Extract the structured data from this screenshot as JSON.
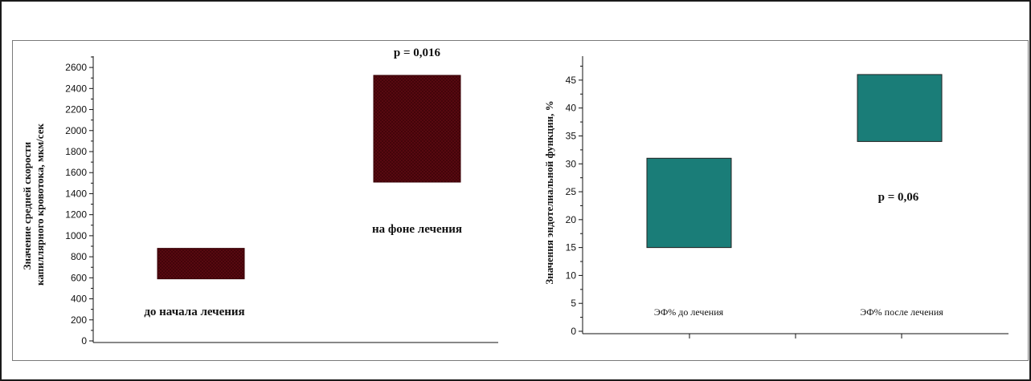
{
  "chart_data": [
    {
      "type": "bar",
      "variant": "floating-range",
      "categories": [
        "до начала лечения",
        "на фоне лечения"
      ],
      "series": [
        {
          "values": [
            [
              590,
              880
            ],
            [
              1510,
              2525
            ]
          ],
          "color": "#5c0a12",
          "pattern": "crosshatch"
        }
      ],
      "ylabel": "Значение средней скорости капиллярного кровотока, мкм/сек",
      "ylim": [
        0,
        2700
      ],
      "yticks": [
        0,
        200,
        400,
        600,
        800,
        1000,
        1200,
        1400,
        1600,
        1800,
        2000,
        2200,
        2400,
        2600
      ],
      "annotations": [
        "p = 0,016"
      ],
      "grid": false
    },
    {
      "type": "bar",
      "variant": "floating-range",
      "categories": [
        "ЭФ% до лечения",
        "ЭФ% после лечения"
      ],
      "series": [
        {
          "values": [
            [
              15,
              31
            ],
            [
              34,
              46
            ]
          ],
          "color": "#1a7d78"
        }
      ],
      "ylabel": "Значения эндотелиальной функции, %",
      "ylim": [
        0,
        48
      ],
      "yticks": [
        0,
        5,
        10,
        15,
        20,
        25,
        30,
        35,
        40,
        45
      ],
      "annotations": [
        "p = 0,06"
      ],
      "grid": false
    }
  ]
}
